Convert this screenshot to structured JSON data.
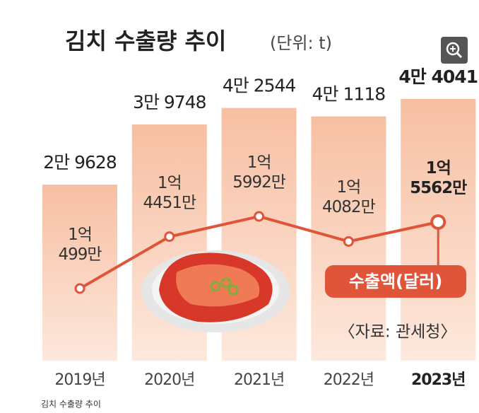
{
  "chart_data": {
    "type": "bar_line",
    "title": "김치 수출량 추이",
    "subtitle": "(단위: t)",
    "categories": [
      "2019년",
      "2020년",
      "2021년",
      "2022년",
      "2023년"
    ],
    "series": [
      {
        "name": "수출량",
        "type": "bar",
        "color": "#f6c3a8",
        "values": [
          29628,
          39748,
          42544,
          41118,
          44041
        ],
        "value_labels": [
          "2만 9628",
          "3만 9748",
          "4만 2544",
          "4만 1118",
          "4만 4041"
        ]
      },
      {
        "name": "수출액(달러)",
        "type": "line",
        "color": "#e0553a",
        "values": [
          104990000,
          144510000,
          159920000,
          140820000,
          155620000
        ],
        "value_labels": [
          "1억\n499만",
          "1억\n4451만",
          "1억\n5992만",
          "1억\n4082만",
          "1억\n5562만"
        ]
      }
    ],
    "source": "〈자료: 관세청〉",
    "caption": "김치 수출량 추이"
  }
}
